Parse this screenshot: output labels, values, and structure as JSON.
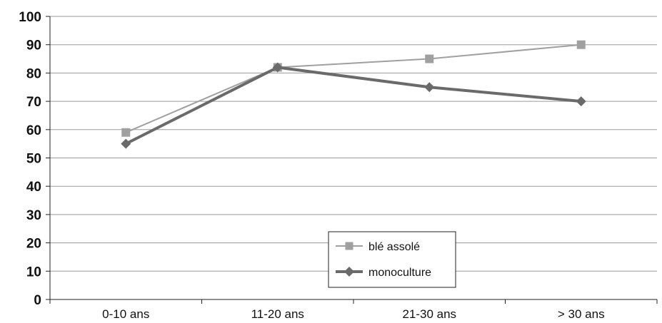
{
  "chart_data": {
    "type": "line",
    "title": "",
    "xlabel": "",
    "ylabel": "",
    "categories": [
      "0-10 ans",
      "11-20 ans",
      "21-30 ans",
      "> 30 ans"
    ],
    "y_ticks": [
      "0",
      "10",
      "20",
      "30",
      "40",
      "50",
      "60",
      "70",
      "80",
      "90",
      "100"
    ],
    "ylim": [
      0,
      100
    ],
    "grid": true,
    "legend_position": "bottom-center",
    "series": [
      {
        "name": "blé assolé",
        "values": [
          59,
          82,
          85,
          90
        ],
        "color": "#a0a0a0",
        "marker": "square"
      },
      {
        "name": "monoculture",
        "values": [
          55,
          82,
          75,
          70
        ],
        "color": "#6a6a6a",
        "marker": "diamond"
      }
    ]
  }
}
